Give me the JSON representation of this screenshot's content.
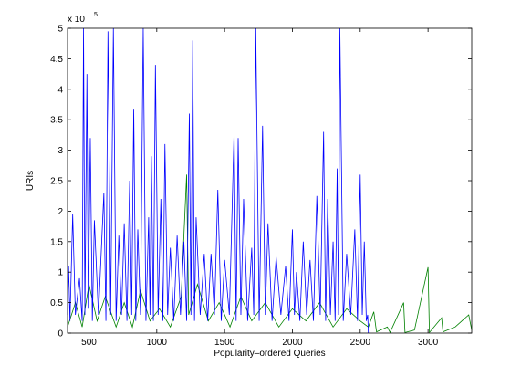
{
  "chart_data": {
    "type": "line",
    "x_label": "Popularity–ordered Queries",
    "y_label": "URIs",
    "y_multiplier": "x 10",
    "y_multiplier_exp": "5",
    "xlim": [
      342,
      3322
    ],
    "ylim": [
      0,
      5
    ],
    "xticks": [
      500,
      1000,
      1500,
      2000,
      2500,
      3000
    ],
    "yticks": [
      0,
      0.5,
      1,
      1.5,
      2,
      2.5,
      3,
      3.5,
      4,
      4.5,
      5
    ],
    "grid": false,
    "series": [
      {
        "color": "#008000",
        "x": [
          342,
          400,
          450,
          500,
          560,
          620,
          700,
          760,
          820,
          880,
          950,
          1020,
          1100,
          1180,
          1220,
          1235,
          1300,
          1380,
          1460,
          1540,
          1620,
          1700,
          1800,
          1900,
          2000,
          2100,
          2200,
          2300,
          2400,
          2500,
          2560,
          2600,
          2620,
          2700,
          2720,
          2820,
          2830,
          2900,
          3000,
          3010,
          3100,
          3110,
          3200,
          3300,
          3322
        ],
        "values": [
          0.1,
          0.5,
          0.1,
          0.8,
          0.2,
          0.6,
          0.1,
          0.5,
          0.1,
          0.7,
          0.2,
          0.4,
          0.1,
          0.6,
          2.6,
          0.3,
          0.8,
          0.2,
          0.5,
          0.1,
          0.6,
          0.2,
          0.5,
          0.1,
          0.4,
          0.2,
          0.5,
          0.1,
          0.4,
          0.2,
          0.1,
          0.35,
          0.02,
          0.1,
          0.01,
          0.5,
          0.01,
          0.05,
          1.08,
          0.01,
          0.25,
          0.02,
          0.1,
          0.3,
          0.05
        ]
      },
      {
        "color": "#0000ff",
        "x": [
          342,
          350,
          360,
          380,
          400,
          430,
          450,
          460,
          470,
          485,
          495,
          510,
          525,
          540,
          570,
          610,
          625,
          640,
          660,
          680,
          700,
          720,
          740,
          760,
          780,
          800,
          815,
          830,
          845,
          860,
          880,
          900,
          920,
          940,
          950,
          960,
          975,
          990,
          1010,
          1030,
          1045,
          1060,
          1080,
          1100,
          1125,
          1150,
          1175,
          1200,
          1220,
          1240,
          1252,
          1265,
          1278,
          1290,
          1320,
          1350,
          1375,
          1400,
          1425,
          1450,
          1475,
          1500,
          1535,
          1570,
          1585,
          1600,
          1620,
          1640,
          1670,
          1700,
          1715,
          1730,
          1755,
          1780,
          1800,
          1820,
          1850,
          1880,
          1915,
          1950,
          1975,
          2000,
          2015,
          2030,
          2055,
          2080,
          2105,
          2130,
          2155,
          2180,
          2205,
          2230,
          2245,
          2260,
          2280,
          2300,
          2315,
          2330,
          2340,
          2350,
          2375,
          2400,
          2430,
          2460,
          2480,
          2500,
          2515,
          2530,
          2545,
          2555,
          2560
        ],
        "values": [
          0.3,
          1.1,
          0.2,
          1.95,
          0.3,
          0.9,
          0.2,
          5,
          0.3,
          4.25,
          0.4,
          3.2,
          0.2,
          1.85,
          0.3,
          2.3,
          0.2,
          4.95,
          0.3,
          5,
          0.2,
          1.6,
          0.3,
          1.8,
          0.2,
          2.5,
          0.3,
          3.68,
          0.2,
          1.7,
          0.3,
          5,
          0.2,
          1.9,
          0.3,
          2.9,
          0.2,
          4.4,
          0.3,
          2.2,
          0.2,
          3.1,
          0.3,
          1.4,
          0.2,
          1.6,
          0.3,
          1.5,
          0.2,
          3.6,
          0.3,
          4.8,
          0.2,
          1.9,
          0.3,
          1.3,
          0.2,
          1.3,
          0.3,
          2.35,
          0.2,
          1.2,
          0.3,
          3.3,
          0.2,
          3.2,
          0.3,
          2.2,
          0.2,
          1.4,
          0.3,
          5,
          0.2,
          3.4,
          0.3,
          1.8,
          0.2,
          1.25,
          0.3,
          1.1,
          0.2,
          1.7,
          0.3,
          1.0,
          0.2,
          1.5,
          0.3,
          1.2,
          0.2,
          2.25,
          0.3,
          3.3,
          0.2,
          2.2,
          0.3,
          1.5,
          0.2,
          2.7,
          0.3,
          5,
          0.2,
          1.3,
          0.3,
          1.7,
          0.2,
          2.6,
          0.3,
          1.5,
          0.2,
          0.3,
          0
        ]
      }
    ]
  }
}
